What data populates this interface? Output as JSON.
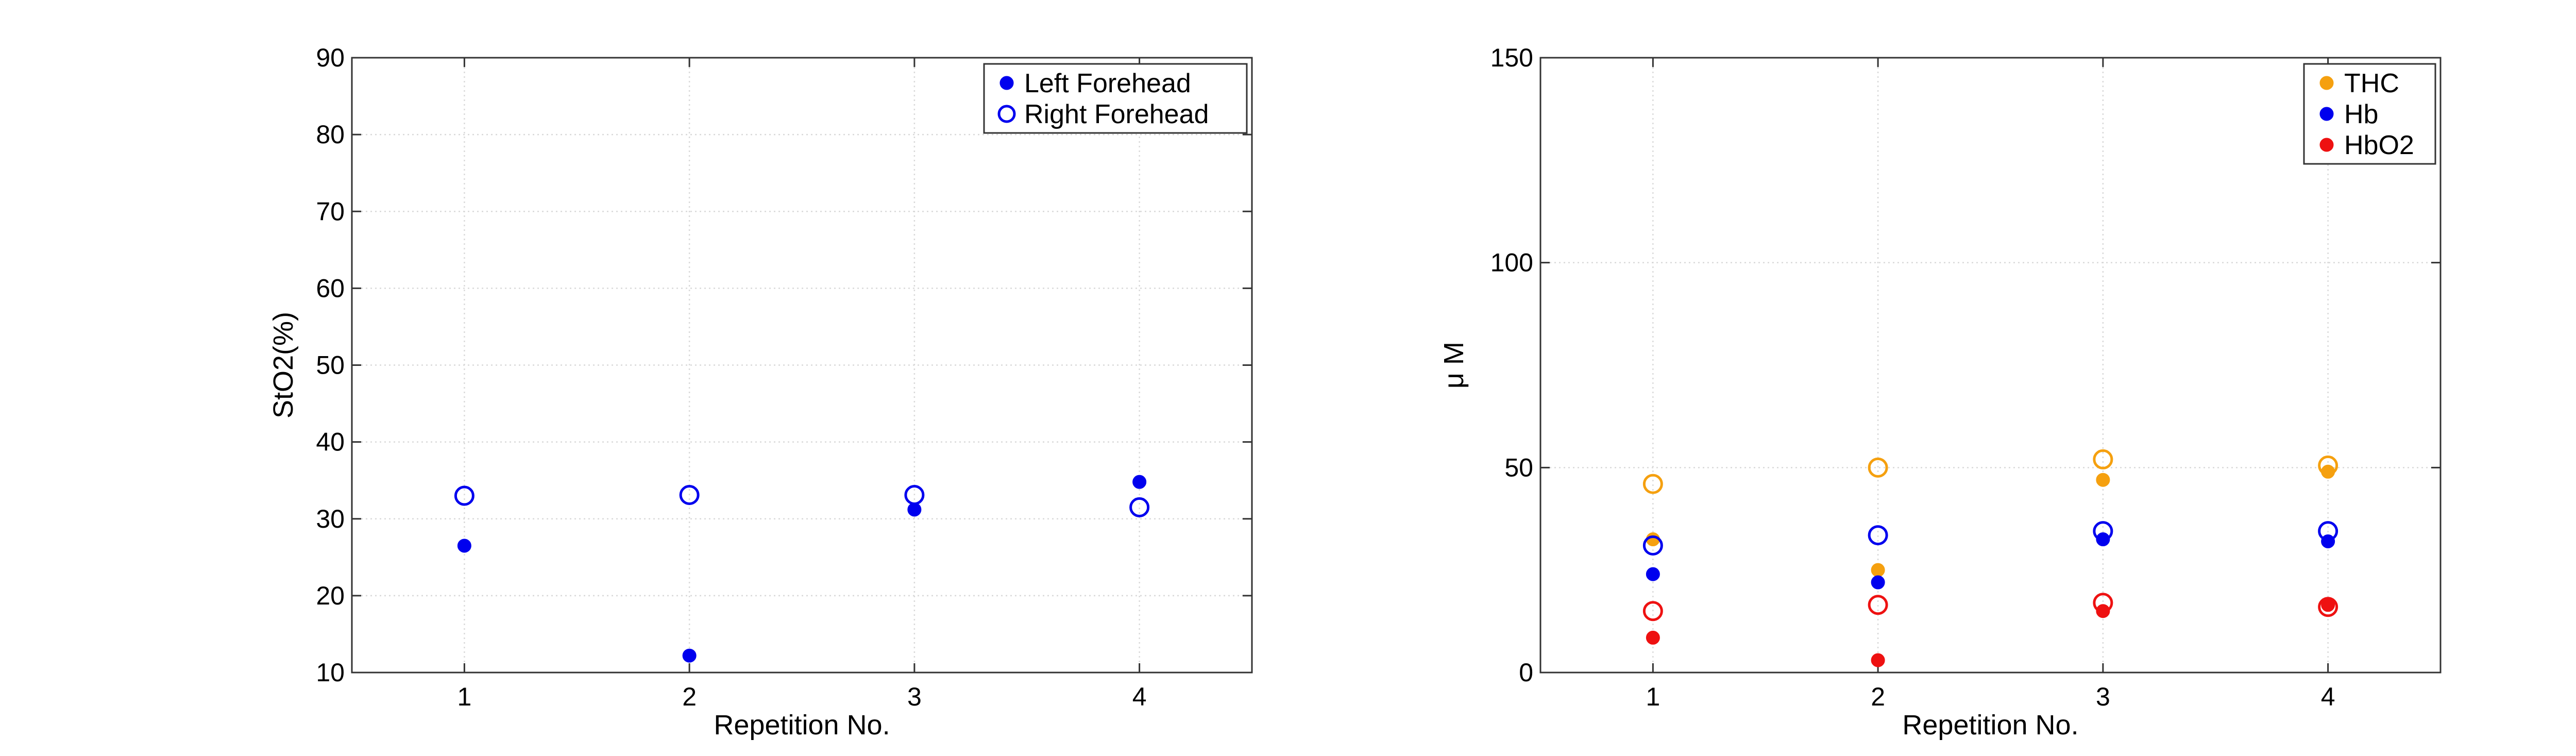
{
  "chart_data": [
    {
      "type": "scatter",
      "xlabel": "Repetition No.",
      "ylabel": "StO2(%)",
      "xlim": [
        0.5,
        4.5
      ],
      "ylim": [
        10,
        90
      ],
      "x_ticks": [
        1,
        2,
        3,
        4
      ],
      "y_ticks": [
        10,
        20,
        30,
        40,
        50,
        60,
        70,
        80,
        90
      ],
      "grid": true,
      "legend_position": "top-right",
      "series": [
        {
          "name": "Left Forehead",
          "marker": "filled",
          "color": "#0000ee",
          "x": [
            1,
            2,
            3,
            4
          ],
          "y": [
            26.5,
            12.2,
            31.2,
            34.8
          ]
        },
        {
          "name": "Right Forehead",
          "marker": "open",
          "color": "#0000ee",
          "x": [
            1,
            2,
            3,
            4
          ],
          "y": [
            33.0,
            33.1,
            33.1,
            31.5
          ]
        }
      ]
    },
    {
      "type": "scatter",
      "xlabel": "Repetition No.",
      "ylabel": "μ M",
      "xlim": [
        0.5,
        4.5
      ],
      "ylim": [
        0,
        150
      ],
      "x_ticks": [
        1,
        2,
        3,
        4
      ],
      "y_ticks": [
        0,
        50,
        100,
        150
      ],
      "grid": true,
      "legend_position": "top-right",
      "series": [
        {
          "name": "THC",
          "marker": "filled",
          "color": "#f5a00f",
          "x": [
            1,
            2,
            3,
            4
          ],
          "y": [
            32.5,
            25.0,
            47.0,
            49.0
          ]
        },
        {
          "name": "Hb",
          "marker": "filled",
          "color": "#0000ee",
          "x": [
            1,
            2,
            3,
            4
          ],
          "y": [
            24.0,
            22.0,
            32.5,
            32.0
          ]
        },
        {
          "name": "HbO2",
          "marker": "filled",
          "color": "#ee1111",
          "x": [
            1,
            2,
            3,
            4
          ],
          "y": [
            8.5,
            3.0,
            15.0,
            16.5
          ]
        },
        {
          "legend": false,
          "marker": "open",
          "color": "#f5a00f",
          "x": [
            1,
            2,
            3,
            4
          ],
          "y": [
            46.0,
            50.0,
            52.0,
            50.5
          ]
        },
        {
          "legend": false,
          "marker": "open",
          "color": "#0000ee",
          "x": [
            1,
            2,
            3,
            4
          ],
          "y": [
            31.0,
            33.5,
            34.5,
            34.5
          ]
        },
        {
          "legend": false,
          "marker": "open",
          "color": "#ee1111",
          "x": [
            1,
            2,
            3,
            4
          ],
          "y": [
            15.0,
            16.5,
            17.0,
            16.0
          ]
        }
      ]
    }
  ]
}
